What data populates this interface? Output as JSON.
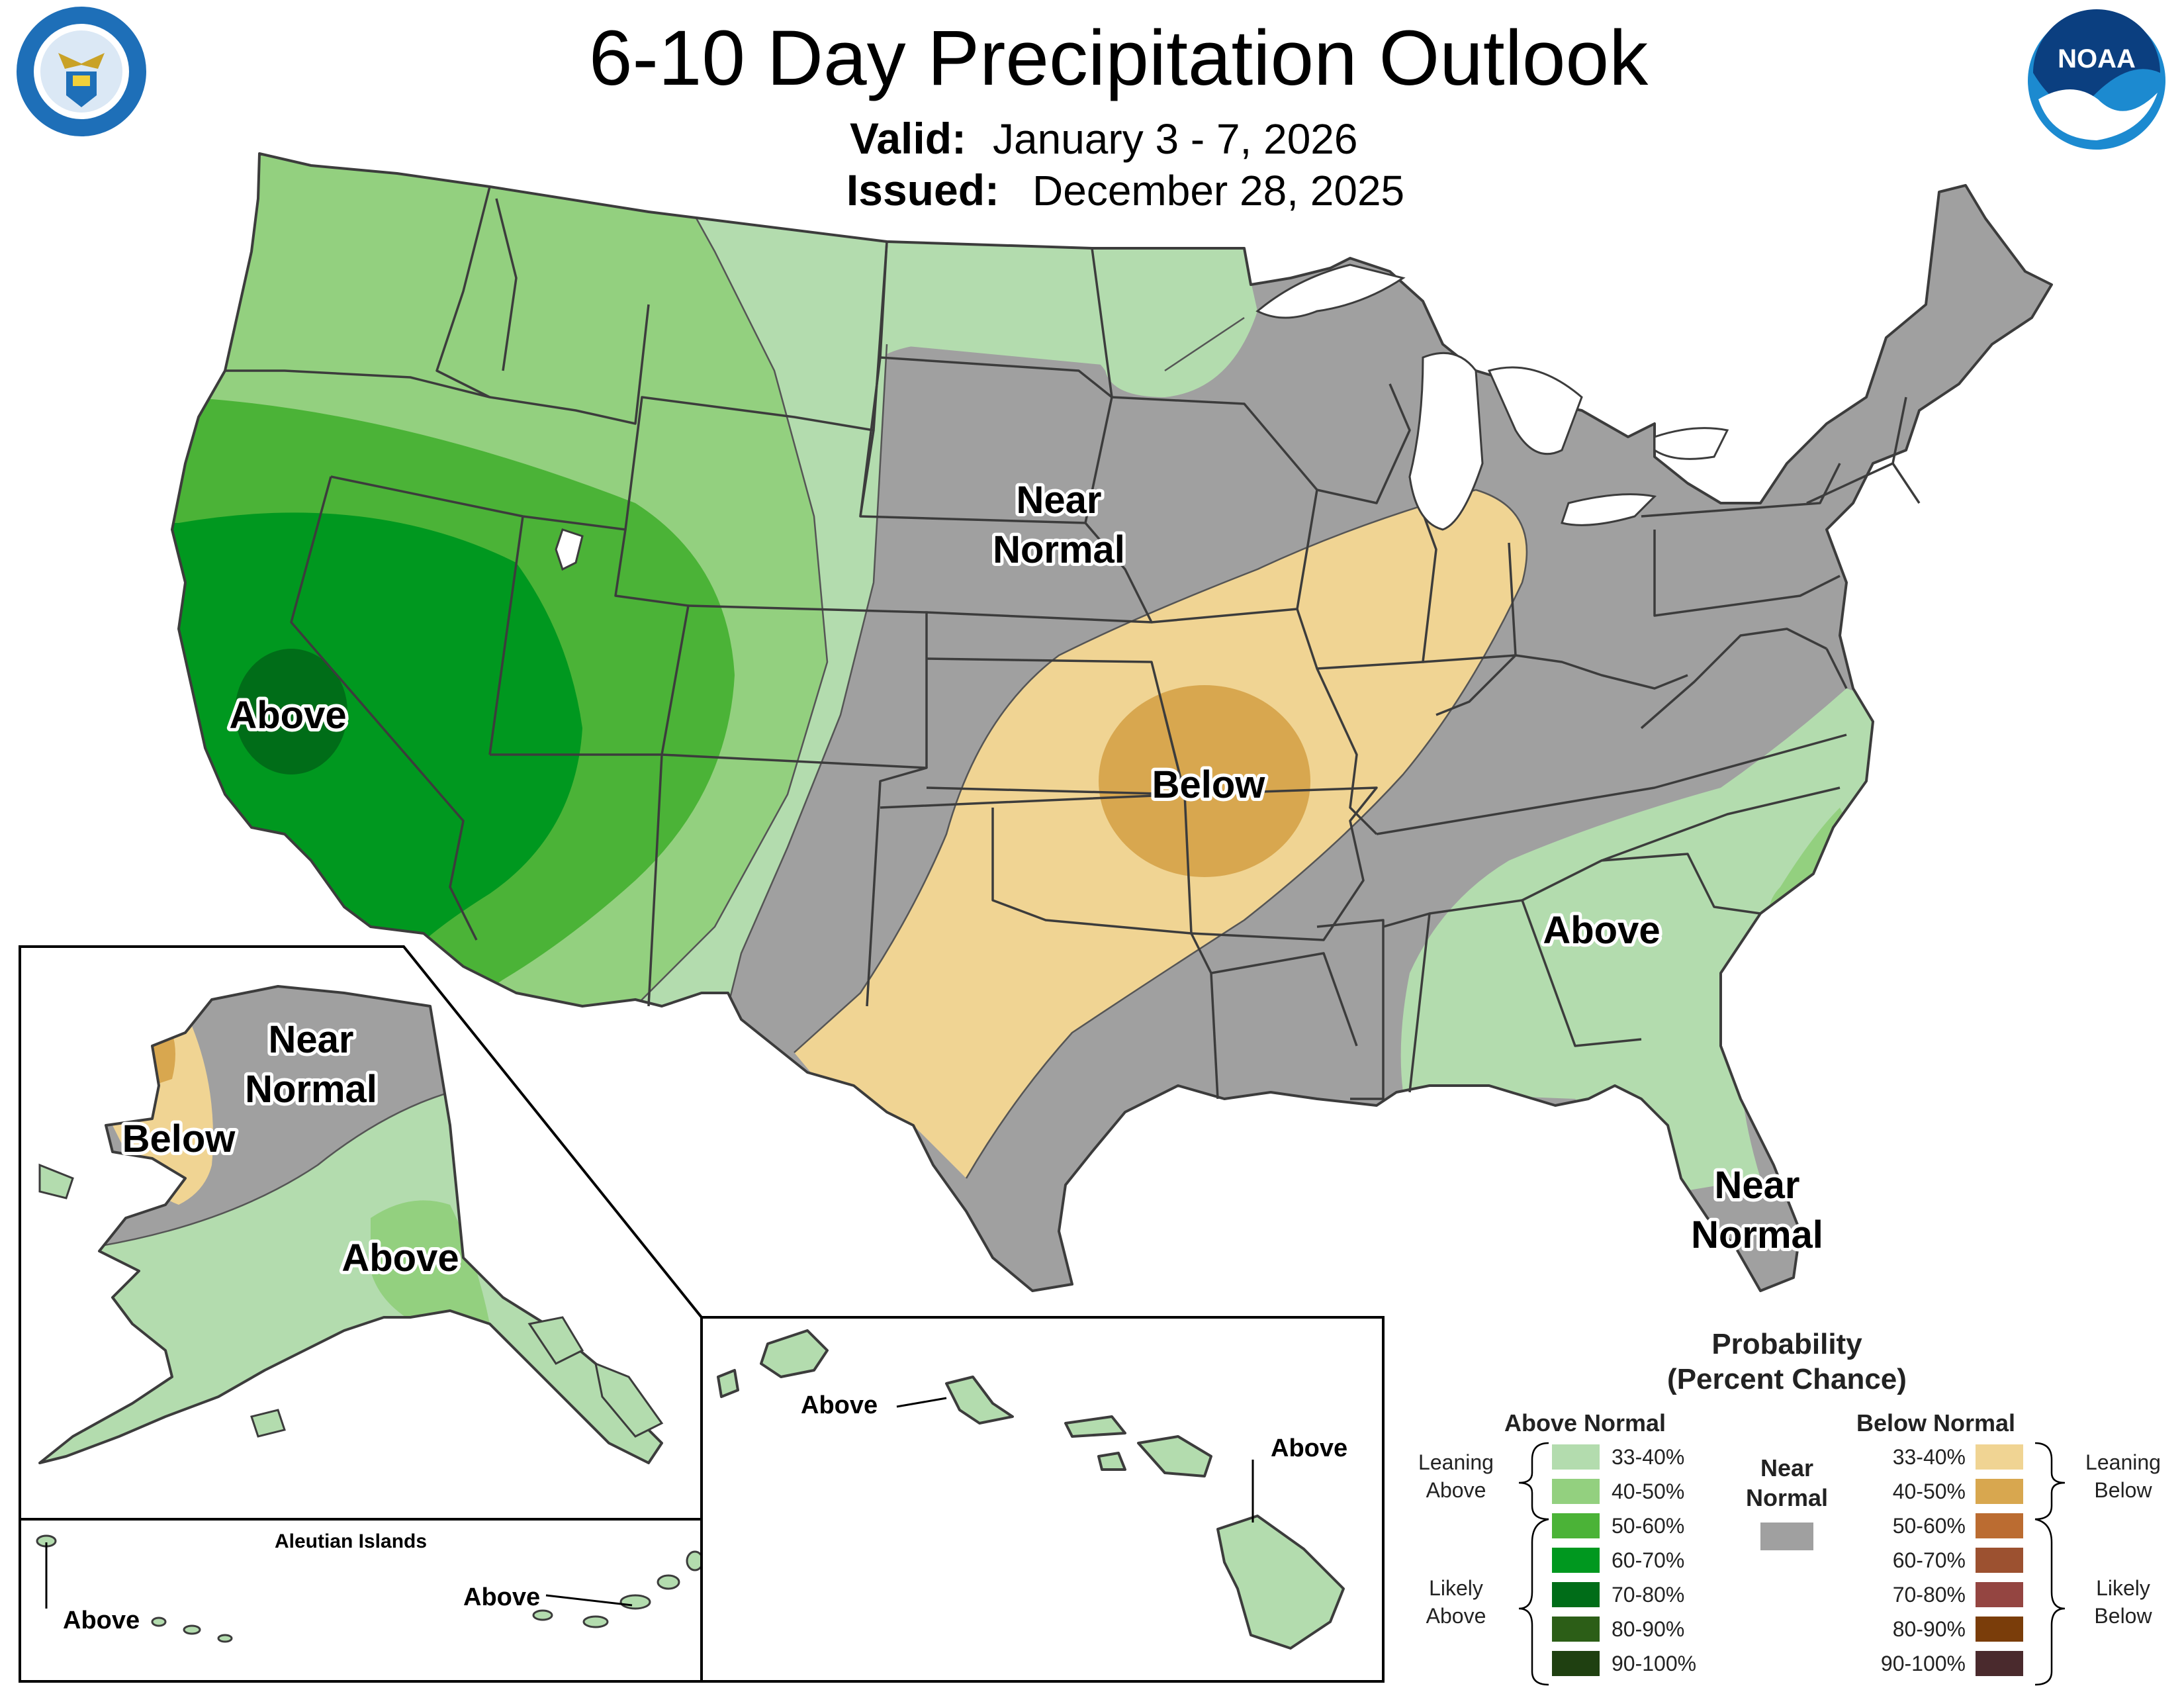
{
  "header": {
    "title": "6-10 Day Precipitation Outlook",
    "valid_label": "Valid:",
    "valid_value": "January 3 - 7, 2026",
    "issued_label": "Issued:",
    "issued_value": "December 28, 2025"
  },
  "logos": {
    "commerce_seal": "department-of-commerce-seal",
    "noaa_logo": "NOAA"
  },
  "map_labels": {
    "conus_west_above": "Above",
    "conus_near_line1": "Near",
    "conus_near_line2": "Normal",
    "conus_below": "Below",
    "southeast_above": "Above",
    "florida_near_line1": "Near",
    "florida_near_line2": "Normal",
    "alaska_near_line1": "Near",
    "alaska_near_line2": "Normal",
    "alaska_below": "Below",
    "alaska_above": "Above",
    "aleutian_title": "Aleutian Islands",
    "aleutian_left_above": "Above",
    "aleutian_right_above": "Above",
    "hawaii_west_above": "Above",
    "hawaii_east_above": "Above"
  },
  "legend": {
    "title_line1": "Probability",
    "title_line2": "(Percent Chance)",
    "above_header": "Above Normal",
    "below_header": "Below Normal",
    "near_line1": "Near",
    "near_line2": "Normal",
    "leaning_above_1": "Leaning",
    "leaning_above_2": "Above",
    "likely_above_1": "Likely",
    "likely_above_2": "Above",
    "leaning_below_1": "Leaning",
    "leaning_below_2": "Below",
    "likely_below_1": "Likely",
    "likely_below_2": "Below",
    "near_color": "#a0a0a0",
    "above_bins": [
      {
        "label": "33-40%",
        "color": "#b3dcae"
      },
      {
        "label": "40-50%",
        "color": "#93d07f"
      },
      {
        "label": "50-60%",
        "color": "#4bb337"
      },
      {
        "label": "60-70%",
        "color": "#00981f"
      },
      {
        "label": "70-80%",
        "color": "#006d18"
      },
      {
        "label": "80-90%",
        "color": "#2c5e17"
      },
      {
        "label": "90-100%",
        "color": "#1f4011"
      }
    ],
    "below_bins": [
      {
        "label": "33-40%",
        "color": "#f0d493"
      },
      {
        "label": "40-50%",
        "color": "#d8a74f"
      },
      {
        "label": "50-60%",
        "color": "#bb6c31"
      },
      {
        "label": "60-70%",
        "color": "#9c5130"
      },
      {
        "label": "70-80%",
        "color": "#944541"
      },
      {
        "label": "80-90%",
        "color": "#7a3d0a"
      },
      {
        "label": "90-100%",
        "color": "#4a2a2d"
      }
    ]
  }
}
